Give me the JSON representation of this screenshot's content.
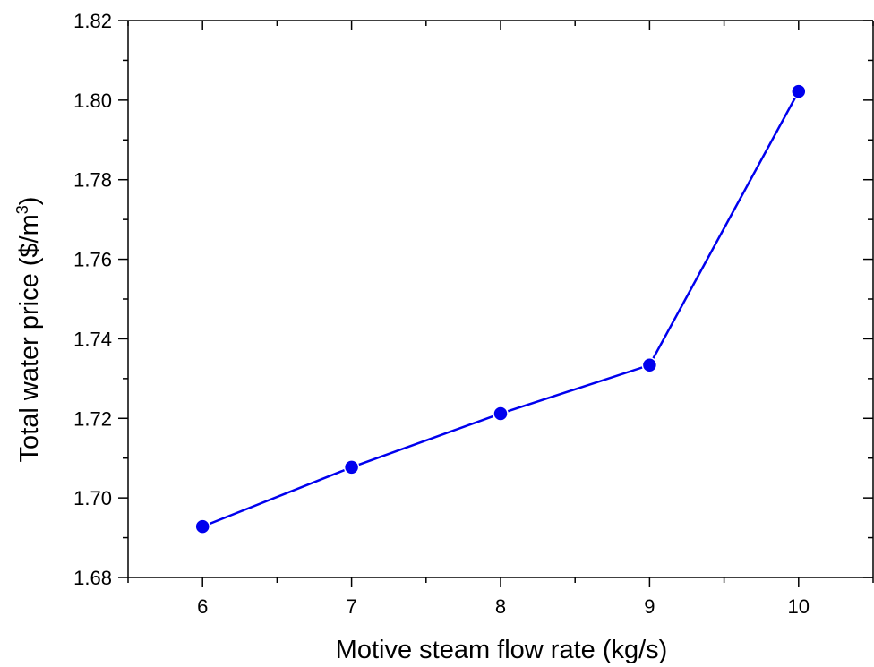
{
  "chart_data": {
    "type": "line",
    "xlabel": "Motive steam flow rate (kg/s)",
    "ylabel": {
      "text": "Total water price ($/m",
      "superscript": "3",
      "suffix": ")"
    },
    "x": [
      6,
      7,
      8,
      9,
      10
    ],
    "series": [
      {
        "values": [
          1.6928,
          1.7077,
          1.7212,
          1.7334,
          1.8022
        ],
        "color": "#0000ee"
      }
    ],
    "xlim": [
      5.5,
      10.5
    ],
    "ylim": [
      1.68,
      1.82
    ],
    "xticks": [
      6,
      7,
      8,
      9,
      10
    ],
    "yticks": [
      1.68,
      1.7,
      1.72,
      1.74,
      1.76,
      1.78,
      1.8,
      1.82
    ],
    "ytick_labels": [
      "1.68",
      "1.70",
      "1.72",
      "1.74",
      "1.76",
      "1.78",
      "1.80",
      "1.82"
    ],
    "grid": false,
    "legend": "none"
  }
}
